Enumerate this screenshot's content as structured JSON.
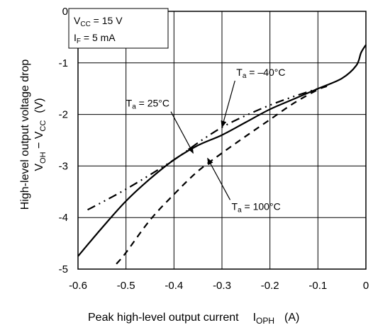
{
  "chart_data": {
    "type": "line",
    "xlabel": "Peak high-level output current",
    "xlabel_symbol": "I",
    "xlabel_sub": "OPH",
    "xlabel_unit": "(A)",
    "ylabel_line1": "High-level output voltage drop",
    "ylabel_line2_a": "V",
    "ylabel_line2_a_sub": "OH",
    "ylabel_line2_mid": " − V",
    "ylabel_line2_b_sub": "CC",
    "ylabel_unit": "(V)",
    "xlim": [
      -0.6,
      0
    ],
    "ylim": [
      -5,
      0
    ],
    "xticks": [
      -0.6,
      -0.5,
      -0.4,
      -0.3,
      -0.2,
      -0.1,
      0
    ],
    "xtick_labels": [
      "-0.6",
      "-0.5",
      "-0.4",
      "-0.3",
      "-0.2",
      "-0.1",
      "0"
    ],
    "yticks": [
      0,
      -1,
      -2,
      -3,
      -4,
      -5
    ],
    "ytick_labels": [
      "0",
      "-1",
      "-2",
      "-3",
      "-4",
      "-5"
    ],
    "grid": true,
    "conditions": [
      {
        "main": "V",
        "sub": "CC",
        "rest": " = 15 V"
      },
      {
        "main": "I",
        "sub": "F",
        "rest": " = 5 mA"
      }
    ],
    "series": [
      {
        "name": "Ta = −40°C",
        "label_main": "T",
        "label_sub": "a",
        "label_rest": " = –40°C",
        "style": "dash-dot-dot",
        "label_anchor": {
          "x": -0.27,
          "y": -1.25
        },
        "arrow_to": {
          "x": -0.3,
          "y": -2.25
        },
        "x": [
          -0.58,
          -0.5,
          -0.4,
          -0.35,
          -0.3,
          -0.25,
          -0.2,
          -0.15,
          -0.1,
          -0.08
        ],
        "y": [
          -3.85,
          -3.45,
          -2.88,
          -2.55,
          -2.25,
          -2.02,
          -1.82,
          -1.65,
          -1.5,
          -1.43
        ]
      },
      {
        "name": "Ta = 25°C",
        "label_main": "T",
        "label_sub": "a",
        "label_rest": " = 25°C",
        "style": "solid",
        "label_anchor": {
          "x": -0.5,
          "y": -1.85
        },
        "arrow_to": {
          "x": -0.36,
          "y": -2.75
        },
        "x": [
          -0.6,
          -0.55,
          -0.5,
          -0.45,
          -0.4,
          -0.35,
          -0.3,
          -0.25,
          -0.2,
          -0.15,
          -0.1,
          -0.05,
          -0.02,
          -0.01,
          0
        ],
        "y": [
          -4.75,
          -4.2,
          -3.68,
          -3.25,
          -2.88,
          -2.6,
          -2.4,
          -2.15,
          -1.9,
          -1.7,
          -1.5,
          -1.3,
          -1.05,
          -0.8,
          -0.65
        ]
      },
      {
        "name": "Ta = 100°C",
        "label_main": "T",
        "label_sub": "a",
        "label_rest": " = 100°C",
        "style": "dashed",
        "label_anchor": {
          "x": -0.28,
          "y": -3.85
        },
        "arrow_to": {
          "x": -0.33,
          "y": -2.85
        },
        "x": [
          -0.52,
          -0.5,
          -0.45,
          -0.4,
          -0.35,
          -0.3,
          -0.25,
          -0.2,
          -0.15,
          -0.1,
          -0.08
        ],
        "y": [
          -4.9,
          -4.68,
          -4.05,
          -3.55,
          -3.1,
          -2.75,
          -2.42,
          -2.1,
          -1.78,
          -1.52,
          -1.45
        ]
      }
    ]
  }
}
